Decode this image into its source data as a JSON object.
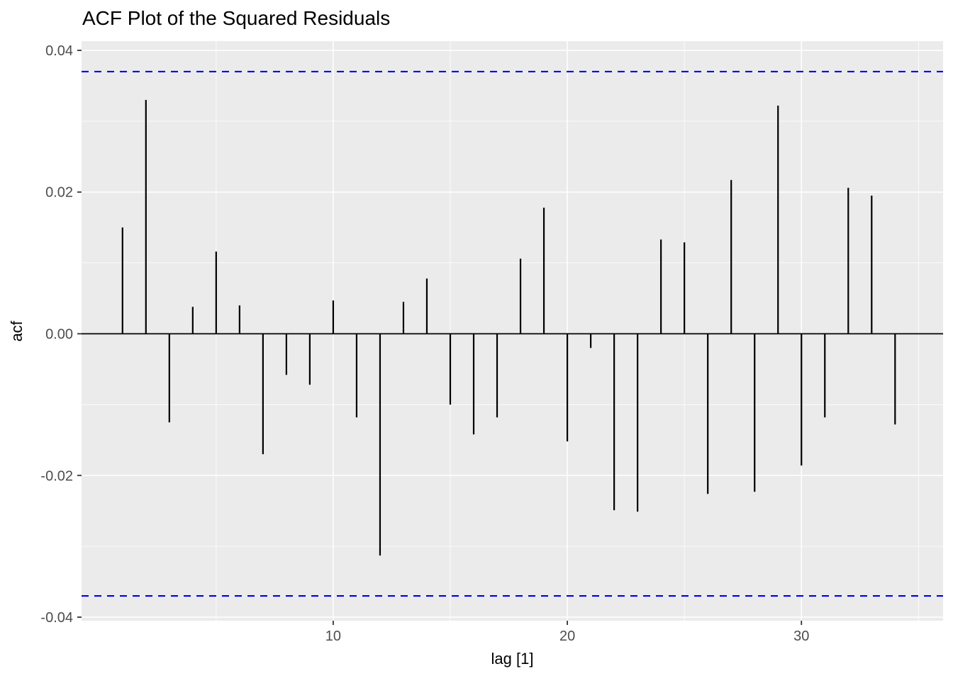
{
  "title": "ACF Plot of the Squared Residuals",
  "axes": {
    "x": {
      "label": "lag [1]",
      "major_ticks": [
        {
          "value": 10,
          "label": "10"
        },
        {
          "value": 20,
          "label": "20"
        },
        {
          "value": 30,
          "label": "30"
        }
      ],
      "minor_ticks": [
        5,
        15,
        25,
        35
      ],
      "range": [
        -0.75,
        36.05
      ]
    },
    "y": {
      "label": "acf",
      "major_ticks": [
        {
          "value": 0.04,
          "label": "0.04"
        },
        {
          "value": 0.02,
          "label": "0.02"
        },
        {
          "value": 0.0,
          "label": "0.00"
        },
        {
          "value": -0.02,
          "label": "-0.02"
        },
        {
          "value": -0.04,
          "label": "-0.04"
        }
      ],
      "minor_ticks": [
        0.03,
        0.01,
        -0.01,
        -0.03
      ],
      "range": [
        -0.0405,
        0.0413
      ]
    }
  },
  "colors": {
    "panel_background": "#EBEBEB",
    "grid_line": "#FFFFFF",
    "segment": "#000000",
    "zero_line": "#000000",
    "confidence_line": "#0000EE",
    "tick_mark": "#333333",
    "tick_label": "#4D4D4D",
    "title_text": "#000000"
  },
  "chart_data": {
    "type": "bar",
    "variant": "acf-vertical-segments",
    "title": "ACF Plot of the Squared Residuals",
    "xlabel": "lag [1]",
    "ylabel": "acf",
    "lags": [
      1,
      2,
      3,
      4,
      5,
      6,
      7,
      8,
      9,
      10,
      11,
      12,
      13,
      14,
      15,
      16,
      17,
      18,
      19,
      20,
      21,
      22,
      23,
      24,
      25,
      26,
      27,
      28,
      29,
      30,
      31,
      32,
      33,
      34
    ],
    "acf_values": [
      0.015,
      0.033,
      -0.0125,
      0.0038,
      0.0116,
      0.004,
      -0.017,
      -0.0058,
      -0.0072,
      0.0047,
      -0.0118,
      -0.0313,
      0.0045,
      0.0078,
      -0.01,
      -0.0142,
      -0.0118,
      0.0106,
      0.0178,
      -0.0152,
      -0.002,
      -0.0249,
      -0.0251,
      0.0133,
      0.0129,
      -0.0226,
      0.0217,
      -0.0223,
      0.0322,
      -0.0186,
      -0.0118,
      0.0206,
      0.0195,
      -0.0128
    ],
    "confidence_upper": 0.037,
    "confidence_lower": -0.037,
    "confidence_style": "dashed",
    "zero_line": 0,
    "xlim": [
      -0.75,
      36.05
    ],
    "ylim": [
      -0.0405,
      0.0413
    ],
    "grid": true,
    "legend": false
  }
}
